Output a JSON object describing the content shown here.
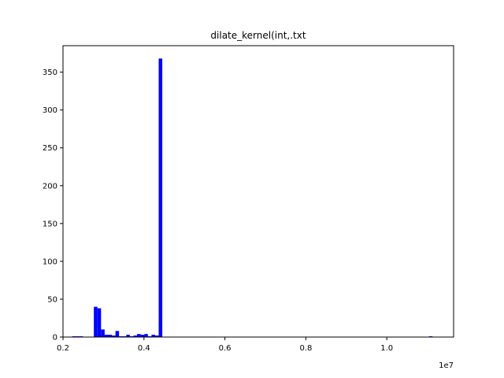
{
  "chart_data": {
    "type": "bar",
    "title": "dilate_kernel(int,.txt",
    "xlabel": "",
    "ylabel": "",
    "x_offset_label": "1e7",
    "xlim": [
      0.2,
      1.165
    ],
    "ylim": [
      0,
      385
    ],
    "x_ticks": [
      {
        "value": 0.2,
        "label": "0.2"
      },
      {
        "value": 0.4,
        "label": "0.4"
      },
      {
        "value": 0.6,
        "label": "0.6"
      },
      {
        "value": 0.8,
        "label": "0.8"
      },
      {
        "value": 1.0,
        "label": "1.0"
      }
    ],
    "y_ticks": [
      {
        "value": 0,
        "label": "0"
      },
      {
        "value": 50,
        "label": "50"
      },
      {
        "value": 100,
        "label": "100"
      },
      {
        "value": 150,
        "label": "150"
      },
      {
        "value": 200,
        "label": "200"
      },
      {
        "value": 250,
        "label": "250"
      },
      {
        "value": 300,
        "label": "300"
      },
      {
        "value": 350,
        "label": "350"
      }
    ],
    "bar_color": "#0000ff",
    "bin_width": 0.0089,
    "bins": [
      {
        "x": 0.2228,
        "count": 1
      },
      {
        "x": 0.2317,
        "count": 1
      },
      {
        "x": 0.2406,
        "count": 1
      },
      {
        "x": 0.2762,
        "count": 40
      },
      {
        "x": 0.2851,
        "count": 38
      },
      {
        "x": 0.294,
        "count": 10
      },
      {
        "x": 0.3029,
        "count": 3
      },
      {
        "x": 0.3118,
        "count": 3
      },
      {
        "x": 0.3207,
        "count": 2
      },
      {
        "x": 0.3296,
        "count": 8
      },
      {
        "x": 0.3385,
        "count": 1
      },
      {
        "x": 0.3474,
        "count": 1
      },
      {
        "x": 0.3563,
        "count": 3
      },
      {
        "x": 0.3652,
        "count": 1
      },
      {
        "x": 0.3741,
        "count": 2
      },
      {
        "x": 0.383,
        "count": 4
      },
      {
        "x": 0.3919,
        "count": 3
      },
      {
        "x": 0.4008,
        "count": 4
      },
      {
        "x": 0.4097,
        "count": 1
      },
      {
        "x": 0.4186,
        "count": 3
      },
      {
        "x": 0.4275,
        "count": 2
      },
      {
        "x": 0.4364,
        "count": 368
      },
      {
        "x": 1.104,
        "count": 1
      }
    ]
  }
}
